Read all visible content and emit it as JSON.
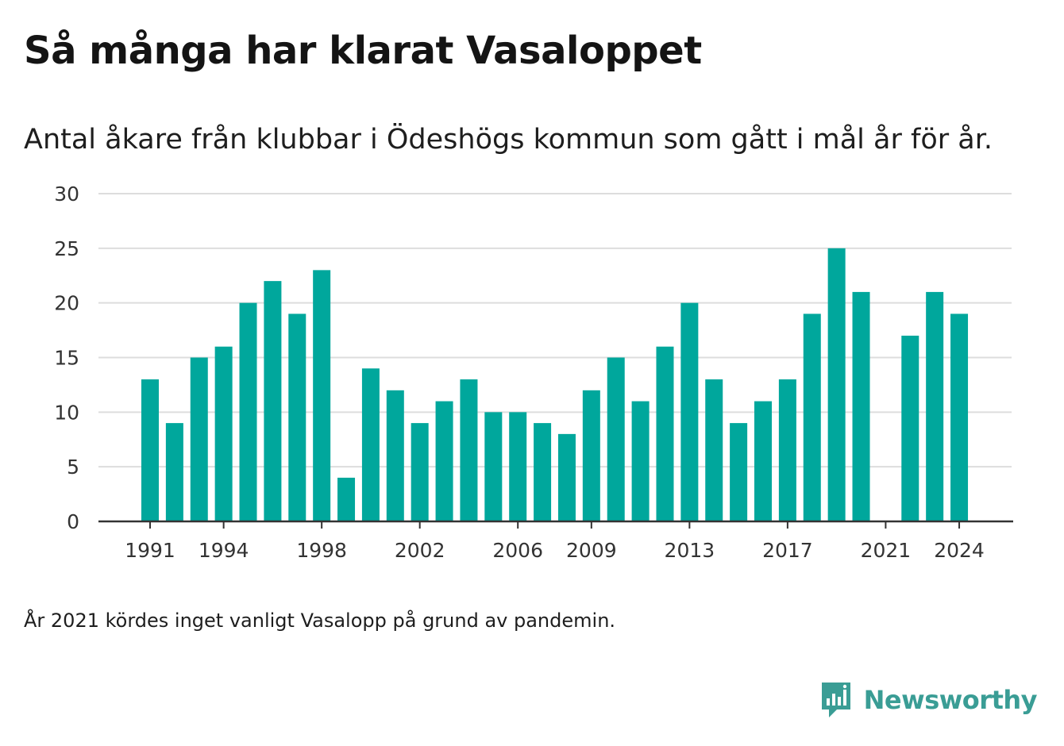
{
  "title": "Så många har klarat Vasaloppet",
  "subtitle": "Antal åkare från klubbar i Ödeshögs kommun som gått i mål år för år.",
  "footnote": "År 2021 kördes inget vanligt Vasalopp på grund av pandemin.",
  "brand": {
    "name": "Newsworthy",
    "icon": "newsworthy-logo-icon"
  },
  "colors": {
    "bar": "#00a79c",
    "grid": "#dddddd",
    "axis": "#333333",
    "brand": "#3a9d95"
  },
  "chart_data": {
    "type": "bar",
    "x": [
      1991,
      1992,
      1993,
      1994,
      1995,
      1996,
      1997,
      1998,
      1999,
      2000,
      2001,
      2002,
      2003,
      2004,
      2005,
      2006,
      2007,
      2008,
      2009,
      2010,
      2011,
      2012,
      2013,
      2014,
      2015,
      2016,
      2017,
      2018,
      2019,
      2020,
      2021,
      2022,
      2023,
      2024
    ],
    "values": [
      13,
      9,
      15,
      16,
      20,
      22,
      19,
      23,
      4,
      14,
      12,
      9,
      11,
      13,
      10,
      10,
      9,
      8,
      12,
      15,
      11,
      16,
      20,
      13,
      9,
      11,
      13,
      19,
      25,
      21,
      null,
      17,
      21,
      19
    ],
    "x_ticks": [
      "1991",
      "1994",
      "1998",
      "2002",
      "2006",
      "2009",
      "2013",
      "2017",
      "2021",
      "2024"
    ],
    "y_ticks": [
      "0",
      "5",
      "10",
      "15",
      "20",
      "25",
      "30"
    ],
    "ylim": [
      0,
      30
    ],
    "xlabel": "",
    "ylabel": "",
    "grid": true,
    "legend": "none"
  }
}
